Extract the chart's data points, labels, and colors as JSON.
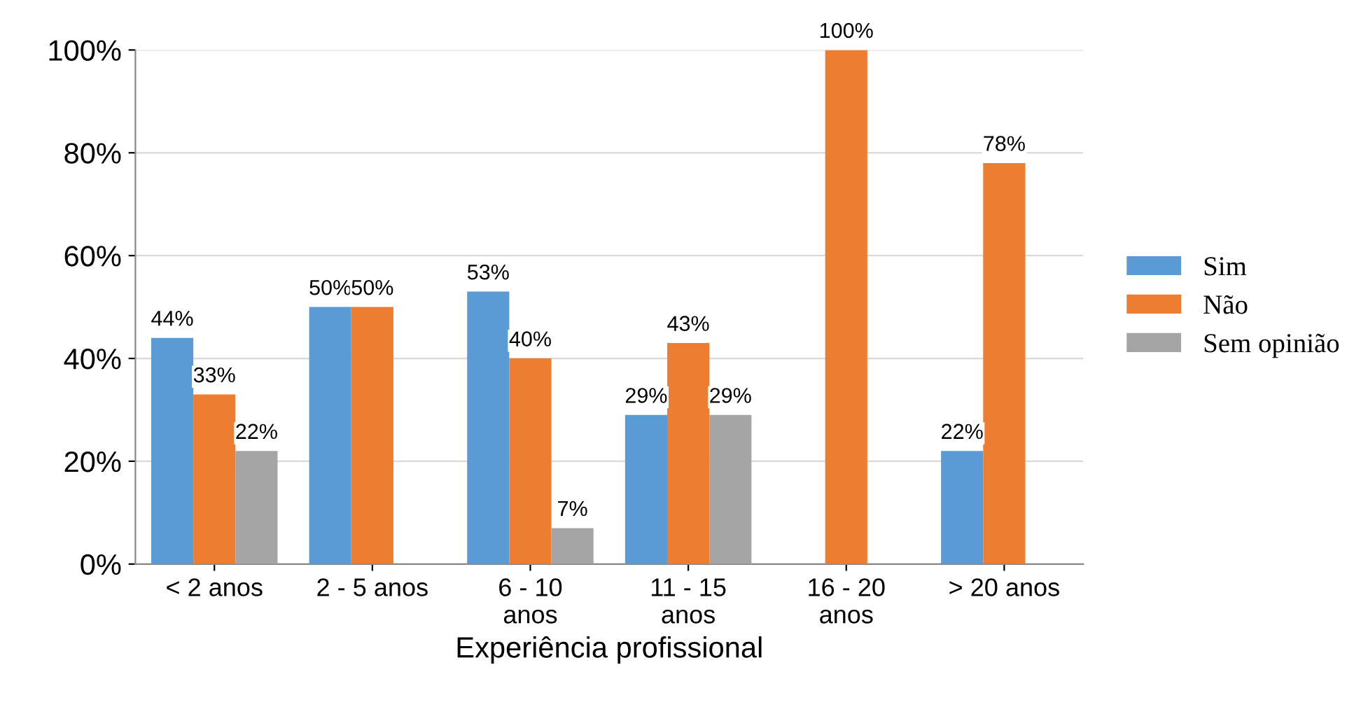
{
  "chart_data": {
    "type": "bar",
    "xlabel": "Experiência profissional",
    "categories": [
      "< 2 anos",
      "2 - 5 anos",
      "6 - 10\nanos",
      "11 - 15\nanos",
      "16 - 20\nanos",
      "> 20 anos"
    ],
    "series": [
      {
        "name": "Sim",
        "color": "#5b9bd5",
        "values": [
          44,
          50,
          53,
          29,
          null,
          22
        ],
        "value_labels": [
          "44%",
          "50%",
          "53%",
          "29%",
          null,
          "22%"
        ]
      },
      {
        "name": "Não",
        "color": "#ed7d31",
        "values": [
          33,
          50,
          40,
          43,
          100,
          78
        ],
        "value_labels": [
          "33%",
          "50%",
          "40%",
          "43%",
          "100%",
          "78%"
        ]
      },
      {
        "name": "Sem opinião",
        "color": "#a5a5a5",
        "values": [
          22,
          null,
          7,
          29,
          null,
          null
        ],
        "value_labels": [
          "22%",
          null,
          "7%",
          "29%",
          null,
          null
        ]
      }
    ],
    "ylim": [
      0,
      100
    ],
    "yticks": [
      {
        "value": 0,
        "label": "0%"
      },
      {
        "value": 20,
        "label": "20%"
      },
      {
        "value": 40,
        "label": "40%"
      },
      {
        "value": 60,
        "label": "60%"
      },
      {
        "value": 80,
        "label": "80%"
      },
      {
        "value": 100,
        "label": "100%"
      }
    ],
    "grid": "y",
    "legend": "right"
  }
}
